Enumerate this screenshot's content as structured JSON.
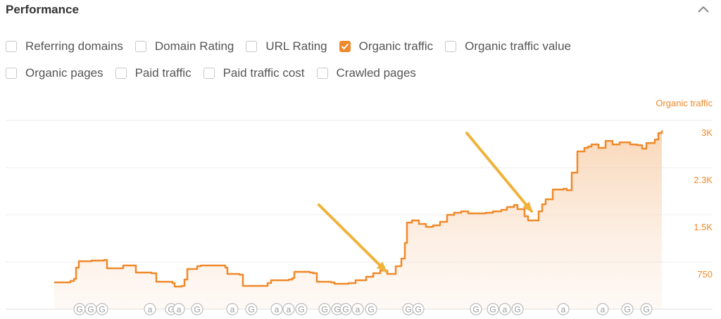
{
  "panel": {
    "title": "Performance",
    "collapse_icon": "chevron-up-icon"
  },
  "checkboxes": [
    [
      {
        "label": "Referring domains",
        "checked": false
      },
      {
        "label": "Domain Rating",
        "checked": false
      },
      {
        "label": "URL Rating",
        "checked": false
      },
      {
        "label": "Organic traffic",
        "checked": true
      },
      {
        "label": "Organic traffic value",
        "checked": false
      }
    ],
    [
      {
        "label": "Organic pages",
        "checked": false
      },
      {
        "label": "Paid traffic",
        "checked": false
      },
      {
        "label": "Paid traffic cost",
        "checked": false
      },
      {
        "label": "Crawled pages",
        "checked": false
      }
    ]
  ],
  "colors": {
    "accent": "#f0892a",
    "arrow": "#f0b23a"
  },
  "chart_data": {
    "type": "area",
    "axis_label": "Organic traffic",
    "y_ticks": [
      "3K",
      "2.3K",
      "1.5K",
      "750"
    ],
    "ylim": [
      0,
      3000
    ],
    "grid": true,
    "series": [
      {
        "values": [
          425,
          448,
          481,
          660,
          761,
          772,
          783,
          649,
          649,
          694,
          694,
          582,
          571,
          436,
          414,
          358,
          369,
          470,
          638,
          683,
          694,
          660,
          560,
          548,
          369,
          369,
          414,
          459,
          459,
          470,
          492,
          593,
          582,
          571,
          436,
          425,
          403,
          414,
          459,
          515,
          571,
          615,
          560,
          560,
          683,
          805,
          1052,
          1376,
          1410,
          1354,
          1309,
          1332,
          1388,
          1499,
          1533,
          1555,
          1522,
          1522,
          1533,
          1555,
          1578,
          1623,
          1656,
          1589,
          1477,
          1410,
          1410,
          1555,
          1667,
          1746,
          1902,
          1913,
          1891,
          2171,
          2507,
          2563,
          2585,
          2618,
          2563,
          2674,
          2618,
          2652,
          2618,
          2607,
          2551,
          2641,
          2697,
          2798,
          2842
        ]
      }
    ],
    "event_markers": [
      "G",
      "G",
      "G",
      "a",
      "G",
      "a",
      "G",
      "a",
      "G",
      "a",
      "a",
      "G",
      "G",
      "G",
      "G",
      "a",
      "G",
      "G",
      "G",
      "G",
      "G",
      "a",
      "G",
      "a",
      "a",
      "G",
      "G"
    ]
  }
}
